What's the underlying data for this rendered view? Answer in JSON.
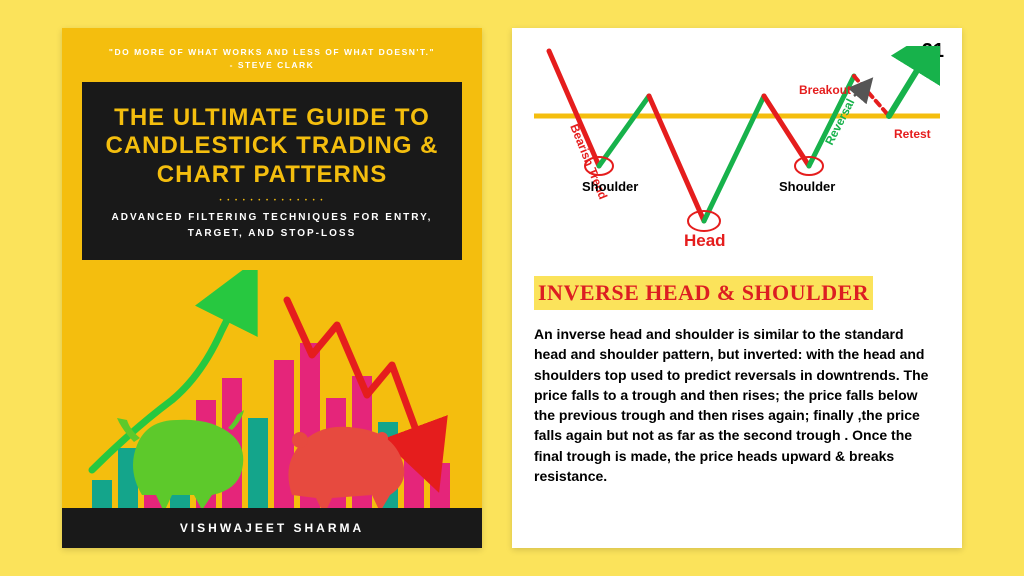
{
  "background_color": "#fbe35b",
  "left": {
    "bg": "#f4be0e",
    "quote": "\"DO MORE OF WHAT WORKS AND LESS OF WHAT DOESN'T.\"",
    "quote_author": "- STEVE CLARK",
    "title": "THE ULTIMATE GUIDE TO CANDLESTICK TRADING & CHART PATTERNS",
    "subtitle": "ADVANCED FILTERING TECHNIQUES FOR ENTRY, TARGET, AND STOP-LOSS",
    "author": "VISHWAJEET SHARMA",
    "bars": {
      "count": 14,
      "heights": [
        38,
        70,
        52,
        96,
        118,
        140,
        100,
        158,
        175,
        120,
        142,
        96,
        82,
        55
      ],
      "colors": [
        "#14a58b",
        "#14a58b",
        "#e5257a",
        "#14a58b",
        "#e5257a",
        "#e5257a",
        "#14a58b",
        "#e5257a",
        "#e5257a",
        "#e5257a",
        "#e5257a",
        "#14a58b",
        "#e5257a",
        "#e5257a"
      ],
      "green_arrow_color": "#27c840",
      "red_arrow_color": "#e51d1d",
      "bull_color": "#5dc92b",
      "bear_color": "#e74a3f"
    }
  },
  "right": {
    "page_number": "21",
    "diagram": {
      "type": "line-pattern",
      "trend_red": "#e51d1d",
      "up_green": "#17b24b",
      "neckline_color": "#f4be0e",
      "label_black": "#000",
      "labels": {
        "bearish_trend": "Bearish Trend",
        "shoulder1": "Shoulder",
        "head": "Head",
        "shoulder2": "Shoulder",
        "reversal": "Reversal",
        "breakout": "Breakout",
        "retest": "Retest"
      }
    },
    "pattern_title": "INVERSE HEAD & SHOULDER",
    "description": "An inverse head and shoulder is similar to the standard head and shoulder pattern, but inverted: with the head and shoulders top used to predict reversals in downtrends. The price falls to a trough and then rises; the price falls below the previous trough and then rises again; finally ,the price falls again but not as far as the second trough . Once the final trough is made, the price heads upward & breaks resistance."
  }
}
